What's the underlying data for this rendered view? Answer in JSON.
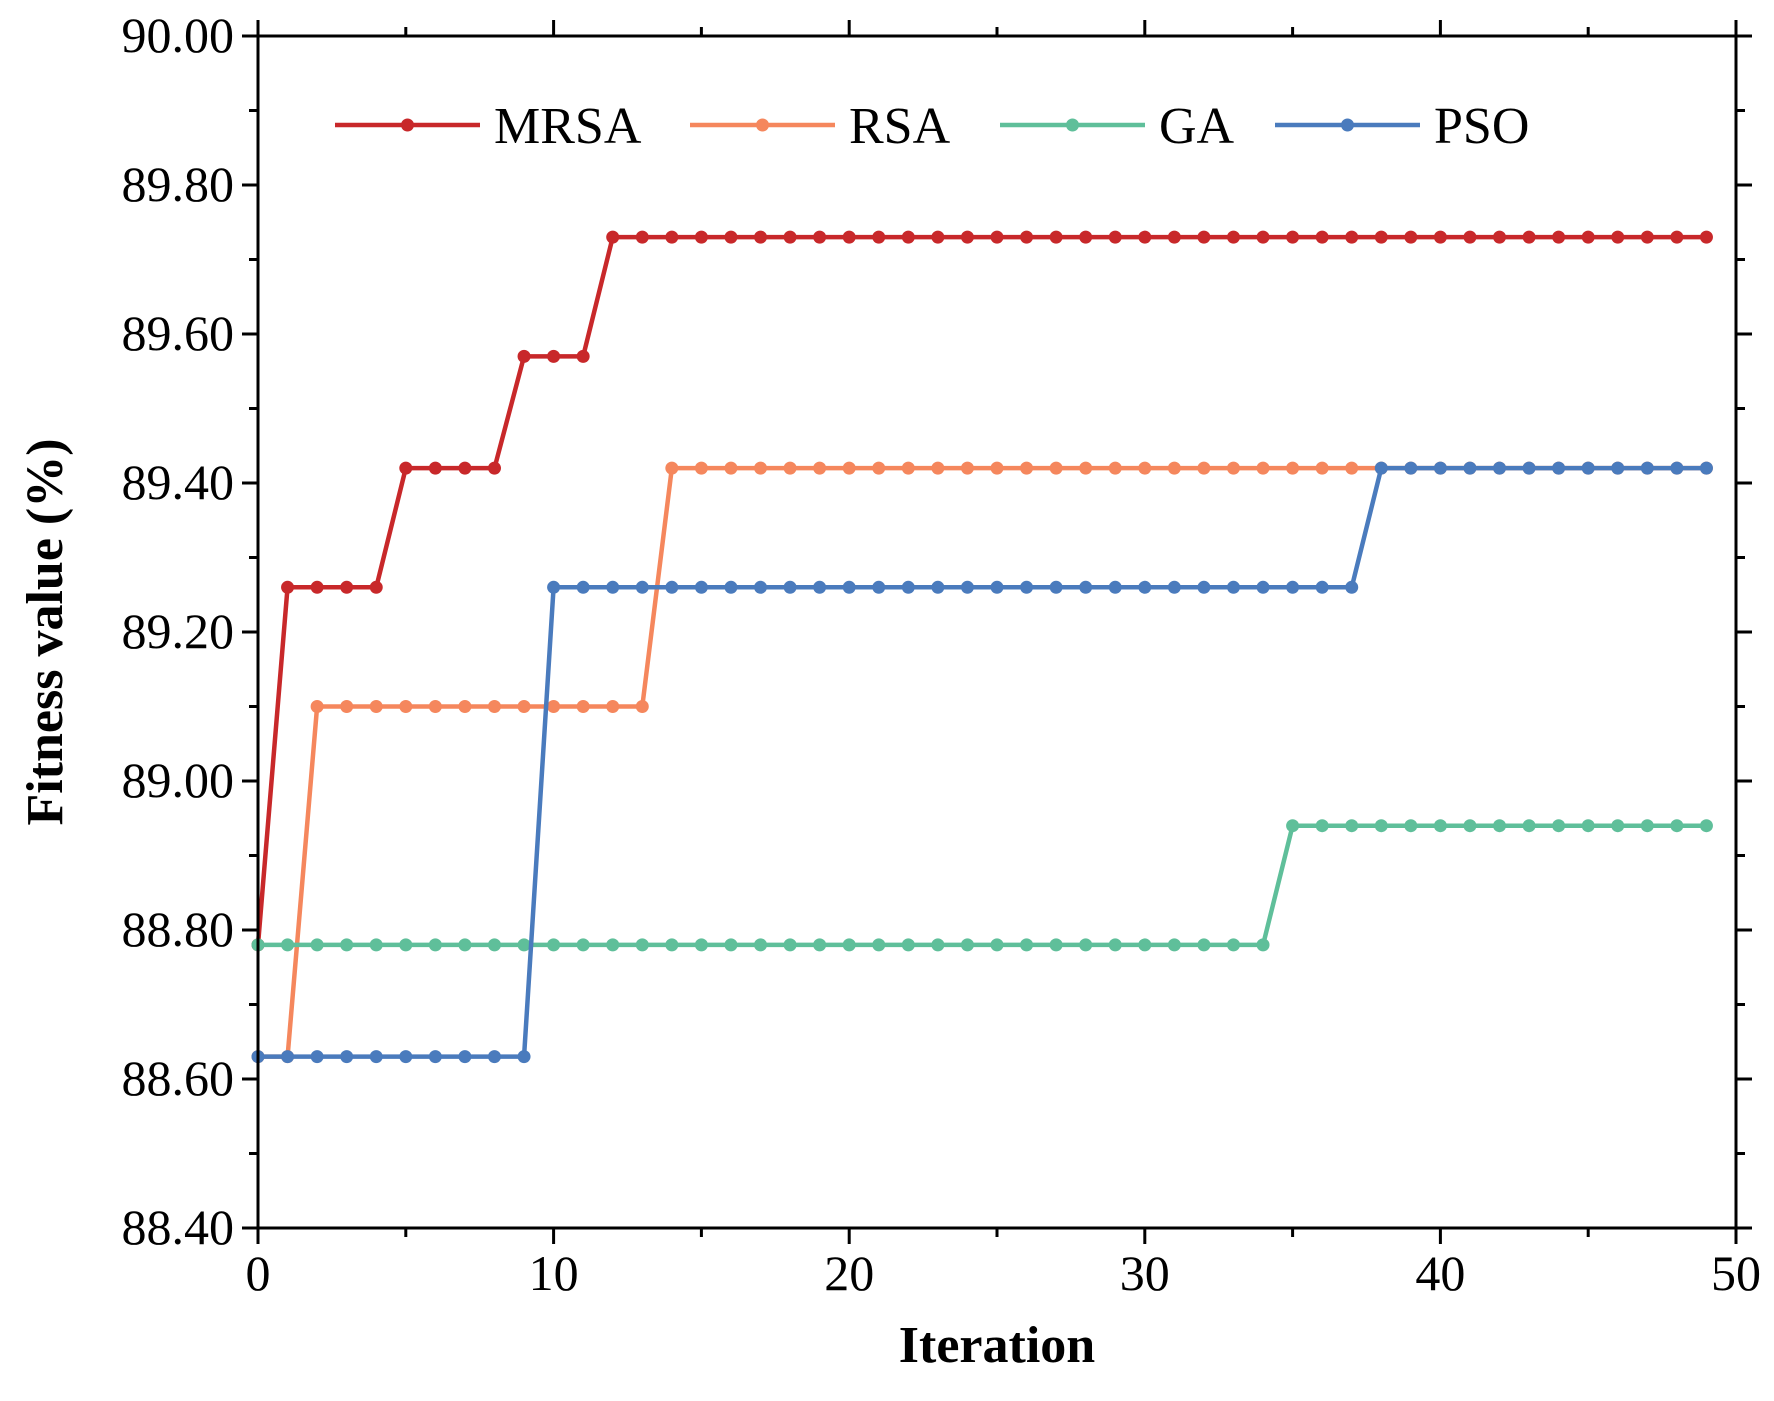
{
  "chart_data": {
    "type": "line",
    "title": "",
    "xlabel": "Iteration",
    "ylabel": "Fitness value (%)",
    "xlim": [
      0,
      50
    ],
    "ylim": [
      88.4,
      90.0
    ],
    "xticks": [
      0,
      10,
      20,
      30,
      40,
      50
    ],
    "xtick_labels": [
      "0",
      "10",
      "20",
      "30",
      "40",
      "50"
    ],
    "yticks": [
      88.4,
      88.6,
      88.8,
      89.0,
      89.2,
      89.4,
      89.6,
      89.8,
      90.0
    ],
    "ytick_labels": [
      "88.40",
      "88.60",
      "88.80",
      "89.00",
      "89.20",
      "89.40",
      "89.60",
      "89.80",
      "90.00"
    ],
    "legend_position": "top",
    "x": [
      0,
      1,
      2,
      3,
      4,
      5,
      6,
      7,
      8,
      9,
      10,
      11,
      12,
      13,
      14,
      15,
      16,
      17,
      18,
      19,
      20,
      21,
      22,
      23,
      24,
      25,
      26,
      27,
      28,
      29,
      30,
      31,
      32,
      33,
      34,
      35,
      36,
      37,
      38,
      39,
      40,
      41,
      42,
      43,
      44,
      45,
      46,
      47,
      48,
      49
    ],
    "series": [
      {
        "name": "MRSA",
        "color": "#c8282a",
        "values": [
          88.78,
          89.26,
          89.26,
          89.26,
          89.26,
          89.42,
          89.42,
          89.42,
          89.42,
          89.57,
          89.57,
          89.57,
          89.73,
          89.73,
          89.73,
          89.73,
          89.73,
          89.73,
          89.73,
          89.73,
          89.73,
          89.73,
          89.73,
          89.73,
          89.73,
          89.73,
          89.73,
          89.73,
          89.73,
          89.73,
          89.73,
          89.73,
          89.73,
          89.73,
          89.73,
          89.73,
          89.73,
          89.73,
          89.73,
          89.73,
          89.73,
          89.73,
          89.73,
          89.73,
          89.73,
          89.73,
          89.73,
          89.73,
          89.73,
          89.73
        ]
      },
      {
        "name": "RSA",
        "color": "#f5875d",
        "values": [
          88.63,
          88.63,
          89.1,
          89.1,
          89.1,
          89.1,
          89.1,
          89.1,
          89.1,
          89.1,
          89.1,
          89.1,
          89.1,
          89.1,
          89.42,
          89.42,
          89.42,
          89.42,
          89.42,
          89.42,
          89.42,
          89.42,
          89.42,
          89.42,
          89.42,
          89.42,
          89.42,
          89.42,
          89.42,
          89.42,
          89.42,
          89.42,
          89.42,
          89.42,
          89.42,
          89.42,
          89.42,
          89.42,
          89.42,
          89.42,
          89.42,
          89.42,
          89.42,
          89.42,
          89.42,
          89.42,
          89.42,
          89.42,
          89.42,
          89.42
        ]
      },
      {
        "name": "GA",
        "color": "#5fbf9a",
        "values": [
          88.78,
          88.78,
          88.78,
          88.78,
          88.78,
          88.78,
          88.78,
          88.78,
          88.78,
          88.78,
          88.78,
          88.78,
          88.78,
          88.78,
          88.78,
          88.78,
          88.78,
          88.78,
          88.78,
          88.78,
          88.78,
          88.78,
          88.78,
          88.78,
          88.78,
          88.78,
          88.78,
          88.78,
          88.78,
          88.78,
          88.78,
          88.78,
          88.78,
          88.78,
          88.78,
          88.94,
          88.94,
          88.94,
          88.94,
          88.94,
          88.94,
          88.94,
          88.94,
          88.94,
          88.94,
          88.94,
          88.94,
          88.94,
          88.94,
          88.94
        ]
      },
      {
        "name": "PSO",
        "color": "#4a7bbd",
        "values": [
          88.63,
          88.63,
          88.63,
          88.63,
          88.63,
          88.63,
          88.63,
          88.63,
          88.63,
          88.63,
          89.26,
          89.26,
          89.26,
          89.26,
          89.26,
          89.26,
          89.26,
          89.26,
          89.26,
          89.26,
          89.26,
          89.26,
          89.26,
          89.26,
          89.26,
          89.26,
          89.26,
          89.26,
          89.26,
          89.26,
          89.26,
          89.26,
          89.26,
          89.26,
          89.26,
          89.26,
          89.26,
          89.26,
          89.42,
          89.42,
          89.42,
          89.42,
          89.42,
          89.42,
          89.42,
          89.42,
          89.42,
          89.42,
          89.42,
          89.42
        ]
      }
    ]
  }
}
